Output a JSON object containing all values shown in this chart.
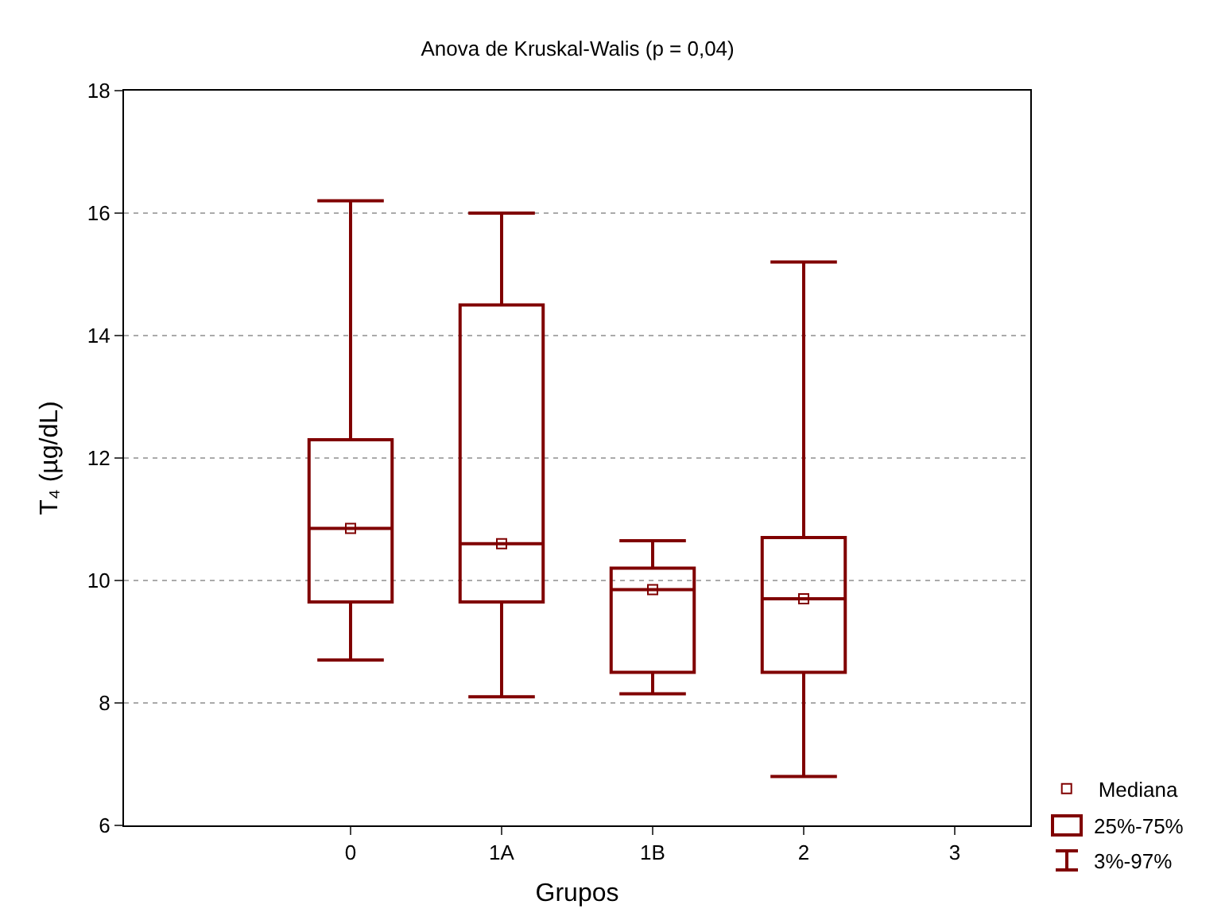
{
  "chart_data": {
    "type": "box",
    "title": "Anova de Kruskal-Walis (p = 0,04)",
    "xlabel": "Grupos",
    "ylabel": "T₄ (µg/dL)",
    "categories": [
      null,
      "0",
      "1A",
      "1B",
      "2",
      "3"
    ],
    "boxes": [
      null,
      {
        "low": 8.7,
        "q1": 9.65,
        "median": 10.85,
        "q3": 12.3,
        "high": 16.2
      },
      {
        "low": 8.1,
        "q1": 9.65,
        "median": 10.6,
        "q3": 14.5,
        "high": 16.0
      },
      {
        "low": 8.15,
        "q1": 8.5,
        "median": 9.85,
        "q3": 10.2,
        "high": 10.65
      },
      {
        "low": 6.8,
        "q1": 8.5,
        "median": 9.7,
        "q3": 10.7,
        "high": 15.2
      },
      null
    ],
    "color": "#800000",
    "series": [
      {
        "type": "scatter",
        "name": "Mediana",
        "color": "#800000",
        "values": [
          null,
          10.85,
          10.6,
          9.85,
          9.7,
          null
        ]
      }
    ],
    "marker": "square",
    "ylim": [
      6,
      18
    ],
    "yticks": [
      6,
      8,
      10,
      12,
      14,
      16,
      18
    ],
    "grid": "y",
    "legend": "bottom right",
    "annotations": [
      "25%-75%",
      "3%-97%"
    ]
  }
}
